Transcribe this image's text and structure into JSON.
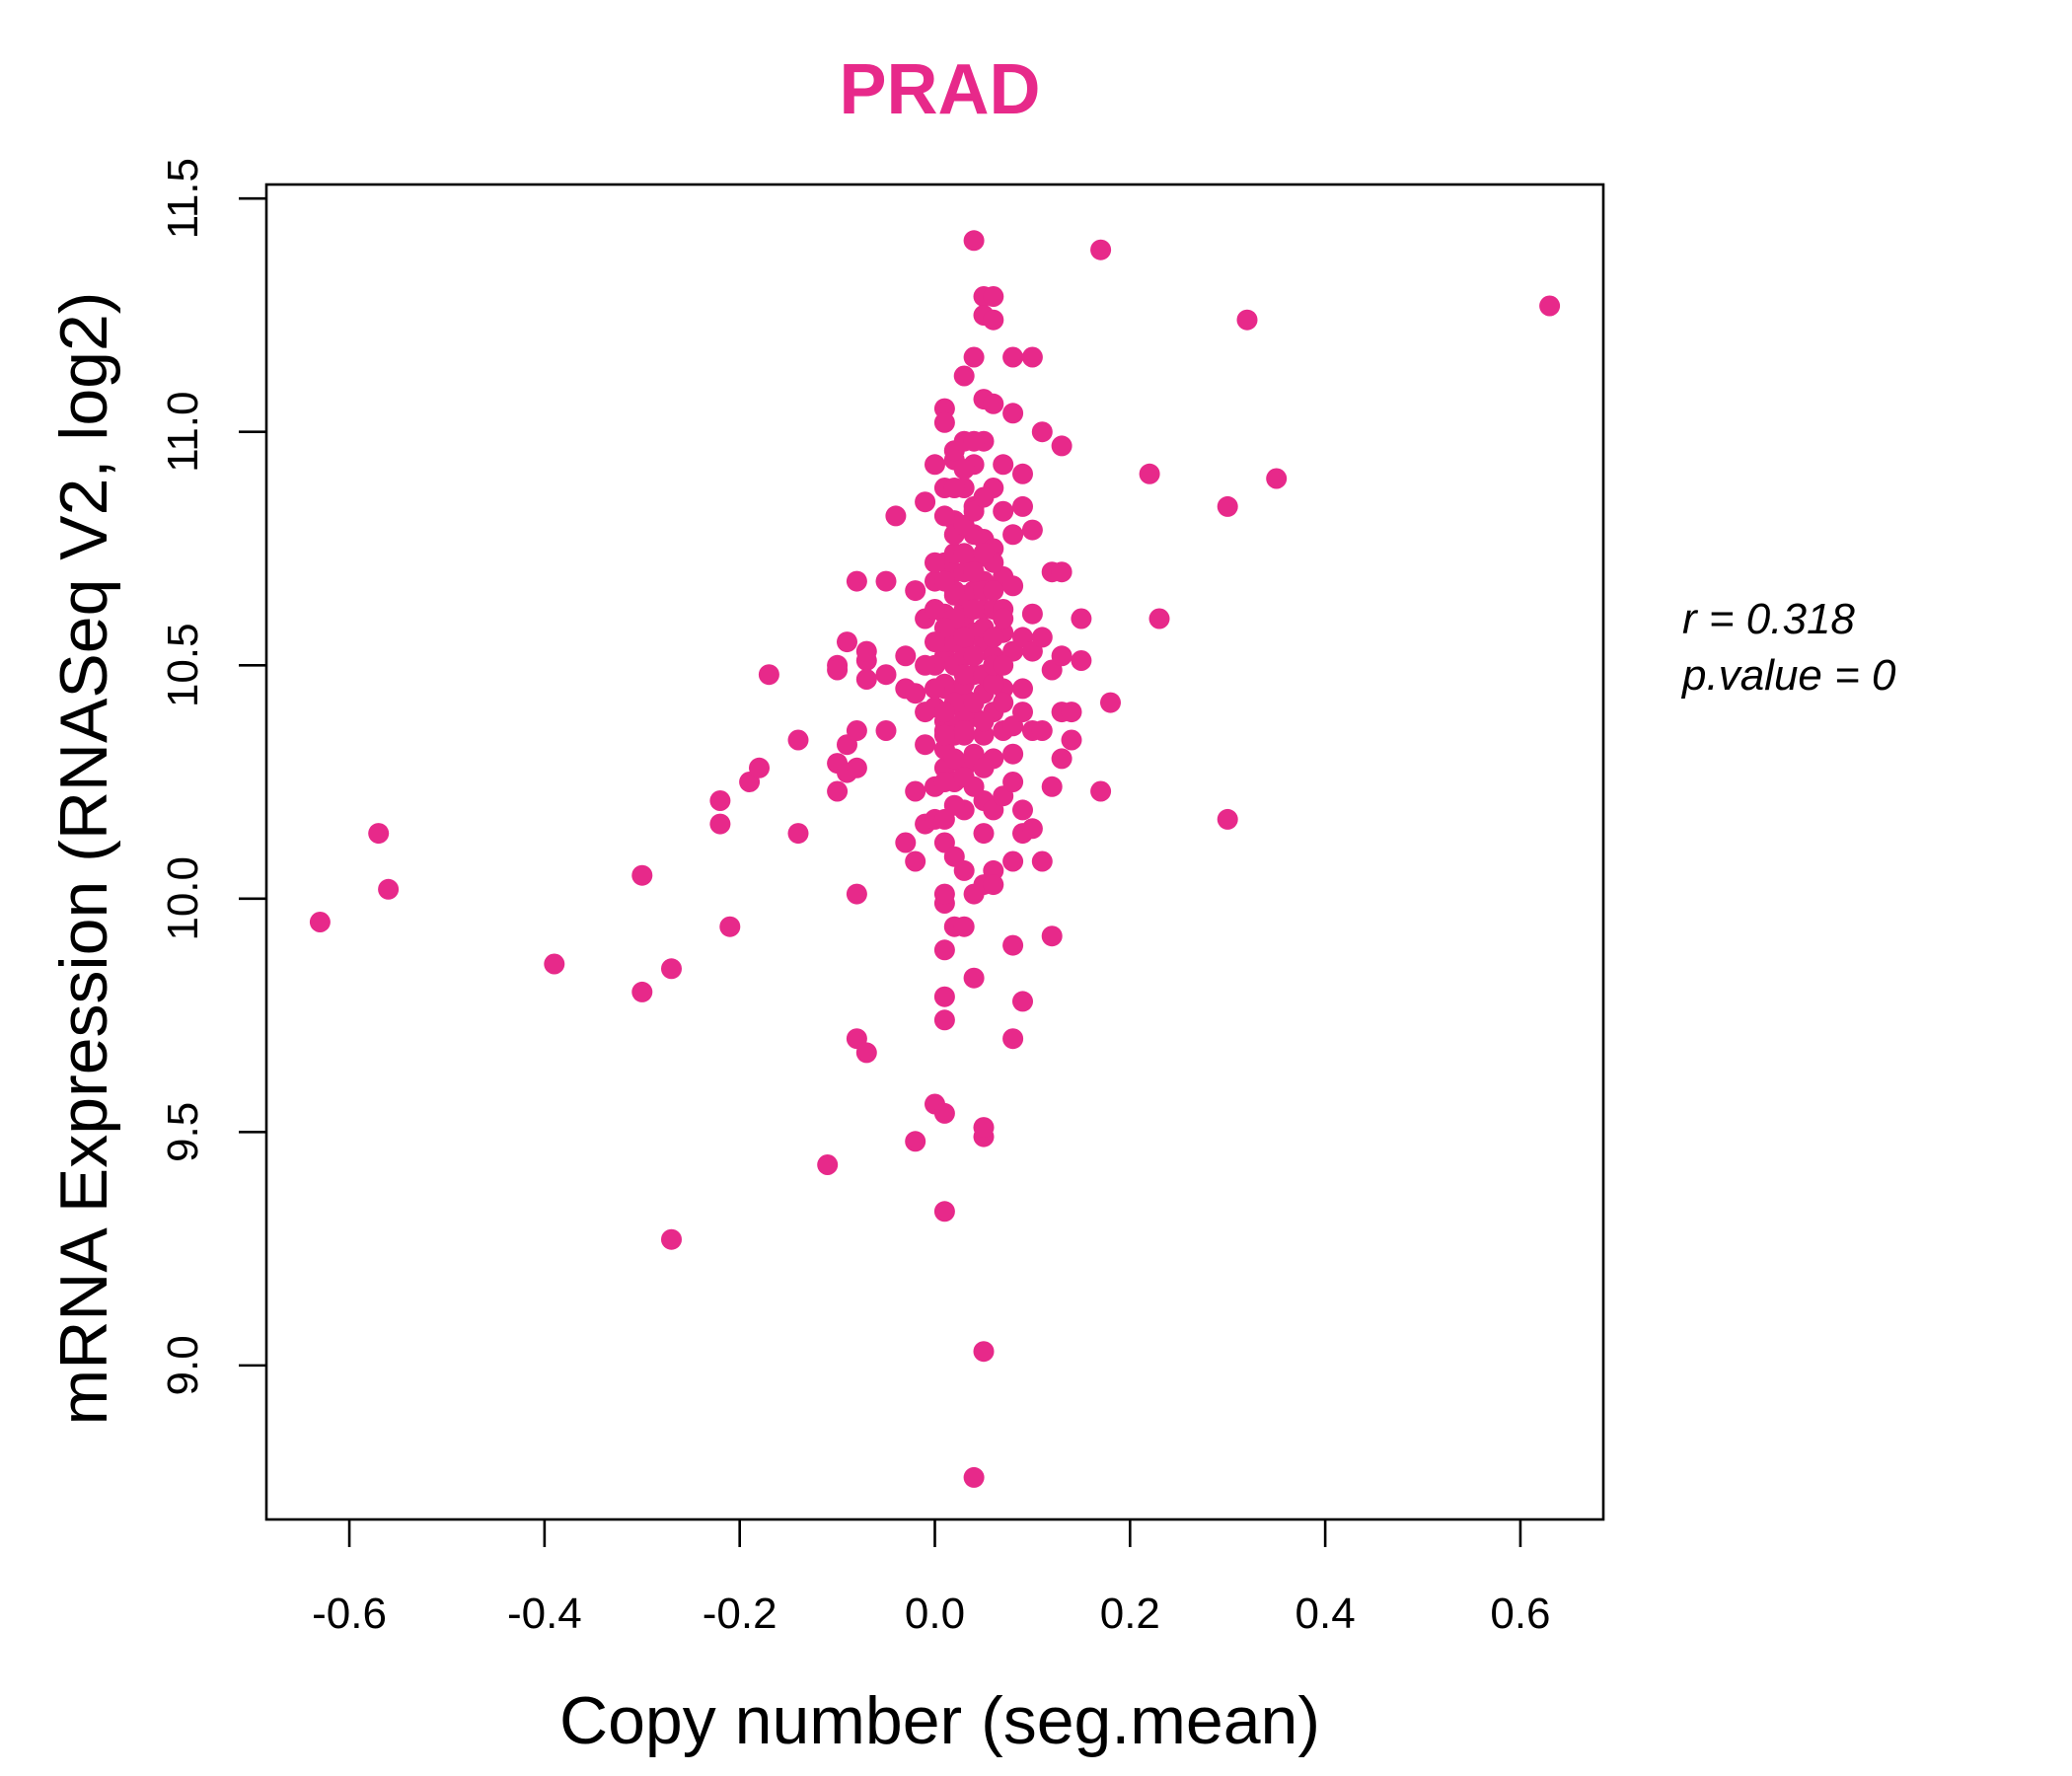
{
  "chart_data": {
    "type": "scatter",
    "title": "PRAD",
    "xlabel": "Copy number (seg.mean)",
    "ylabel": "mRNA Expression (RNASeq V2, log2)",
    "xlim": [
      -0.685,
      0.685
    ],
    "ylim": [
      8.76,
      11.5
    ],
    "x_ticks": [
      "-0.6",
      "-0.4",
      "-0.2",
      "0.0",
      "0.2",
      "0.4",
      "0.6"
    ],
    "y_ticks": [
      "9.0",
      "9.5",
      "10.0",
      "10.5",
      "11.0",
      "11.5"
    ],
    "grid": false,
    "point_color": "#E7298A",
    "annotations": {
      "r_text": "r = 0.318",
      "p_text": "p.value = 0"
    },
    "points": [
      [
        -0.63,
        9.95
      ],
      [
        -0.57,
        10.14
      ],
      [
        -0.56,
        10.02
      ],
      [
        -0.39,
        9.86
      ],
      [
        -0.3,
        10.05
      ],
      [
        -0.3,
        9.8
      ],
      [
        -0.27,
        9.85
      ],
      [
        -0.27,
        9.27
      ],
      [
        -0.22,
        10.21
      ],
      [
        -0.22,
        10.16
      ],
      [
        -0.21,
        9.94
      ],
      [
        -0.19,
        10.25
      ],
      [
        -0.18,
        10.28
      ],
      [
        -0.17,
        10.48
      ],
      [
        -0.14,
        10.34
      ],
      [
        -0.14,
        10.14
      ],
      [
        -0.11,
        9.43
      ],
      [
        -0.1,
        10.5
      ],
      [
        -0.1,
        10.49
      ],
      [
        -0.1,
        10.29
      ],
      [
        -0.1,
        10.23
      ],
      [
        -0.09,
        10.55
      ],
      [
        -0.09,
        10.33
      ],
      [
        -0.09,
        10.27
      ],
      [
        -0.08,
        10.01
      ],
      [
        -0.08,
        10.36
      ],
      [
        -0.08,
        10.28
      ],
      [
        -0.08,
        9.7
      ],
      [
        -0.08,
        10.68
      ],
      [
        -0.07,
        9.67
      ],
      [
        -0.07,
        10.51
      ],
      [
        -0.07,
        10.53
      ],
      [
        -0.07,
        10.47
      ],
      [
        -0.05,
        10.68
      ],
      [
        -0.05,
        10.36
      ],
      [
        -0.05,
        10.48
      ],
      [
        -0.04,
        10.82
      ],
      [
        -0.03,
        10.45
      ],
      [
        -0.03,
        10.12
      ],
      [
        -0.03,
        10.52
      ],
      [
        -0.02,
        10.44
      ],
      [
        -0.02,
        10.66
      ],
      [
        -0.02,
        10.23
      ],
      [
        -0.02,
        9.48
      ],
      [
        -0.02,
        10.08
      ],
      [
        -0.01,
        10.33
      ],
      [
        -0.01,
        10.85
      ],
      [
        -0.01,
        10.16
      ],
      [
        -0.01,
        10.6
      ],
      [
        0.0,
        10.24
      ],
      [
        0.0,
        10.93
      ],
      [
        0.0,
        9.56
      ],
      [
        0.0,
        10.68
      ],
      [
        0.0,
        10.41
      ],
      [
        0.0,
        10.17
      ],
      [
        0.01,
        11.05
      ],
      [
        0.01,
        9.99
      ],
      [
        0.01,
        10.52
      ],
      [
        0.01,
        10.72
      ],
      [
        0.01,
        10.28
      ],
      [
        0.01,
        9.79
      ],
      [
        0.01,
        9.89
      ],
      [
        0.01,
        9.54
      ],
      [
        0.01,
        9.33
      ],
      [
        0.01,
        10.88
      ],
      [
        0.01,
        10.38
      ],
      [
        0.01,
        10.12
      ],
      [
        0.01,
        11.02
      ],
      [
        0.01,
        10.36
      ],
      [
        0.01,
        10.61
      ],
      [
        0.01,
        10.55
      ],
      [
        0.01,
        10.46
      ],
      [
        0.01,
        9.74
      ],
      [
        0.01,
        10.01
      ],
      [
        0.01,
        10.32
      ],
      [
        0.01,
        10.17
      ],
      [
        0.02,
        10.7
      ],
      [
        0.02,
        10.94
      ],
      [
        0.02,
        10.58
      ],
      [
        0.02,
        10.44
      ],
      [
        0.02,
        10.65
      ],
      [
        0.02,
        10.25
      ],
      [
        0.02,
        10.81
      ],
      [
        0.02,
        10.37
      ],
      [
        0.02,
        10.96
      ],
      [
        0.02,
        9.94
      ],
      [
        0.02,
        10.5
      ],
      [
        0.02,
        10.09
      ],
      [
        0.02,
        10.74
      ],
      [
        0.03,
        10.55
      ],
      [
        0.03,
        10.62
      ],
      [
        0.03,
        10.43
      ],
      [
        0.03,
        10.28
      ],
      [
        0.03,
        11.12
      ],
      [
        0.03,
        10.88
      ],
      [
        0.03,
        10.7
      ],
      [
        0.03,
        10.35
      ],
      [
        0.03,
        10.52
      ],
      [
        0.03,
        9.94
      ],
      [
        0.03,
        10.06
      ],
      [
        0.03,
        10.98
      ],
      [
        0.03,
        10.6
      ],
      [
        0.03,
        10.19
      ],
      [
        0.03,
        10.46
      ],
      [
        0.04,
        11.41
      ],
      [
        0.04,
        10.66
      ],
      [
        0.04,
        10.78
      ],
      [
        0.04,
        10.39
      ],
      [
        0.04,
        10.57
      ],
      [
        0.04,
        9.83
      ],
      [
        0.04,
        10.84
      ],
      [
        0.04,
        11.16
      ],
      [
        0.04,
        10.24
      ],
      [
        0.04,
        10.48
      ],
      [
        0.04,
        10.01
      ],
      [
        0.04,
        8.76
      ],
      [
        0.04,
        10.72
      ],
      [
        0.04,
        10.31
      ],
      [
        0.04,
        10.93
      ],
      [
        0.05,
        11.29
      ],
      [
        0.05,
        11.25
      ],
      [
        0.05,
        10.62
      ],
      [
        0.05,
        9.49
      ],
      [
        0.05,
        9.51
      ],
      [
        0.05,
        10.44
      ],
      [
        0.05,
        10.14
      ],
      [
        0.05,
        10.77
      ],
      [
        0.05,
        10.55
      ],
      [
        0.05,
        10.35
      ],
      [
        0.05,
        10.98
      ],
      [
        0.05,
        9.03
      ],
      [
        0.05,
        11.07
      ],
      [
        0.05,
        10.03
      ],
      [
        0.05,
        10.68
      ],
      [
        0.05,
        10.21
      ],
      [
        0.06,
        11.29
      ],
      [
        0.06,
        11.24
      ],
      [
        0.06,
        10.52
      ],
      [
        0.06,
        10.62
      ],
      [
        0.06,
        10.4
      ],
      [
        0.06,
        10.88
      ],
      [
        0.06,
        10.06
      ],
      [
        0.06,
        10.3
      ],
      [
        0.06,
        11.06
      ],
      [
        0.06,
        10.75
      ],
      [
        0.06,
        10.19
      ],
      [
        0.06,
        10.47
      ],
      [
        0.06,
        10.03
      ],
      [
        0.07,
        10.57
      ],
      [
        0.07,
        10.69
      ],
      [
        0.07,
        10.36
      ],
      [
        0.07,
        10.83
      ],
      [
        0.07,
        10.22
      ],
      [
        0.07,
        10.45
      ],
      [
        0.07,
        10.62
      ],
      [
        0.07,
        10.93
      ],
      [
        0.08,
        11.16
      ],
      [
        0.08,
        10.53
      ],
      [
        0.08,
        10.37
      ],
      [
        0.08,
        10.78
      ],
      [
        0.08,
        10.08
      ],
      [
        0.08,
        9.9
      ],
      [
        0.08,
        9.7
      ],
      [
        0.08,
        11.04
      ],
      [
        0.08,
        10.31
      ],
      [
        0.08,
        10.67
      ],
      [
        0.08,
        10.25
      ],
      [
        0.09,
        10.91
      ],
      [
        0.09,
        10.45
      ],
      [
        0.09,
        10.19
      ],
      [
        0.09,
        10.14
      ],
      [
        0.09,
        9.78
      ],
      [
        0.09,
        10.84
      ],
      [
        0.09,
        10.56
      ],
      [
        0.09,
        10.4
      ],
      [
        0.1,
        11.16
      ],
      [
        0.1,
        10.61
      ],
      [
        0.1,
        10.79
      ],
      [
        0.1,
        10.36
      ],
      [
        0.1,
        10.15
      ],
      [
        0.1,
        10.53
      ],
      [
        0.11,
        11.0
      ],
      [
        0.11,
        10.56
      ],
      [
        0.11,
        10.08
      ],
      [
        0.11,
        10.36
      ],
      [
        0.12,
        10.49
      ],
      [
        0.12,
        10.7
      ],
      [
        0.12,
        9.92
      ],
      [
        0.12,
        10.24
      ],
      [
        0.13,
        10.97
      ],
      [
        0.13,
        10.52
      ],
      [
        0.13,
        10.7
      ],
      [
        0.13,
        10.4
      ],
      [
        0.13,
        10.3
      ],
      [
        0.14,
        10.34
      ],
      [
        0.14,
        10.4
      ],
      [
        0.15,
        10.6
      ],
      [
        0.15,
        10.51
      ],
      [
        0.17,
        11.39
      ],
      [
        0.17,
        10.23
      ],
      [
        0.18,
        10.42
      ],
      [
        0.22,
        10.91
      ],
      [
        0.23,
        10.6
      ],
      [
        0.3,
        10.17
      ],
      [
        0.3,
        10.84
      ],
      [
        0.32,
        11.24
      ],
      [
        0.35,
        10.9
      ],
      [
        0.63,
        11.27
      ],
      [
        0.0,
        10.5
      ],
      [
        0.01,
        10.45
      ],
      [
        0.02,
        10.6
      ],
      [
        0.02,
        10.35
      ],
      [
        0.03,
        10.65
      ],
      [
        0.03,
        10.4
      ],
      [
        0.02,
        10.55
      ],
      [
        0.01,
        10.58
      ],
      [
        0.04,
        10.52
      ],
      [
        0.03,
        10.48
      ],
      [
        0.02,
        10.42
      ],
      [
        0.01,
        10.4
      ],
      [
        0.04,
        10.62
      ],
      [
        0.05,
        10.58
      ],
      [
        0.03,
        10.56
      ],
      [
        0.02,
        10.66
      ],
      [
        0.04,
        10.42
      ],
      [
        0.05,
        10.48
      ],
      [
        0.03,
        10.36
      ],
      [
        0.02,
        10.3
      ],
      [
        0.01,
        10.25
      ],
      [
        0.04,
        10.7
      ],
      [
        0.03,
        10.74
      ],
      [
        0.05,
        10.66
      ],
      [
        0.06,
        10.56
      ],
      [
        0.02,
        10.78
      ],
      [
        0.03,
        10.8
      ],
      [
        0.04,
        10.83
      ],
      [
        0.01,
        10.68
      ],
      [
        0.0,
        10.62
      ],
      [
        0.0,
        10.55
      ],
      [
        0.0,
        10.45
      ],
      [
        0.01,
        10.35
      ],
      [
        0.05,
        10.38
      ],
      [
        0.06,
        10.46
      ],
      [
        0.06,
        10.5
      ],
      [
        0.07,
        10.5
      ],
      [
        0.07,
        10.42
      ],
      [
        0.04,
        10.3
      ],
      [
        0.03,
        10.26
      ],
      [
        0.05,
        10.28
      ],
      [
        0.02,
        10.2
      ],
      [
        0.01,
        10.82
      ],
      [
        0.03,
        10.92
      ],
      [
        0.04,
        10.98
      ],
      [
        0.05,
        10.86
      ],
      [
        0.06,
        10.72
      ],
      [
        0.02,
        10.88
      ],
      [
        0.0,
        10.72
      ],
      [
        -0.01,
        10.5
      ],
      [
        -0.01,
        10.4
      ],
      [
        0.07,
        10.6
      ],
      [
        0.06,
        10.66
      ],
      [
        0.05,
        10.74
      ]
    ]
  }
}
